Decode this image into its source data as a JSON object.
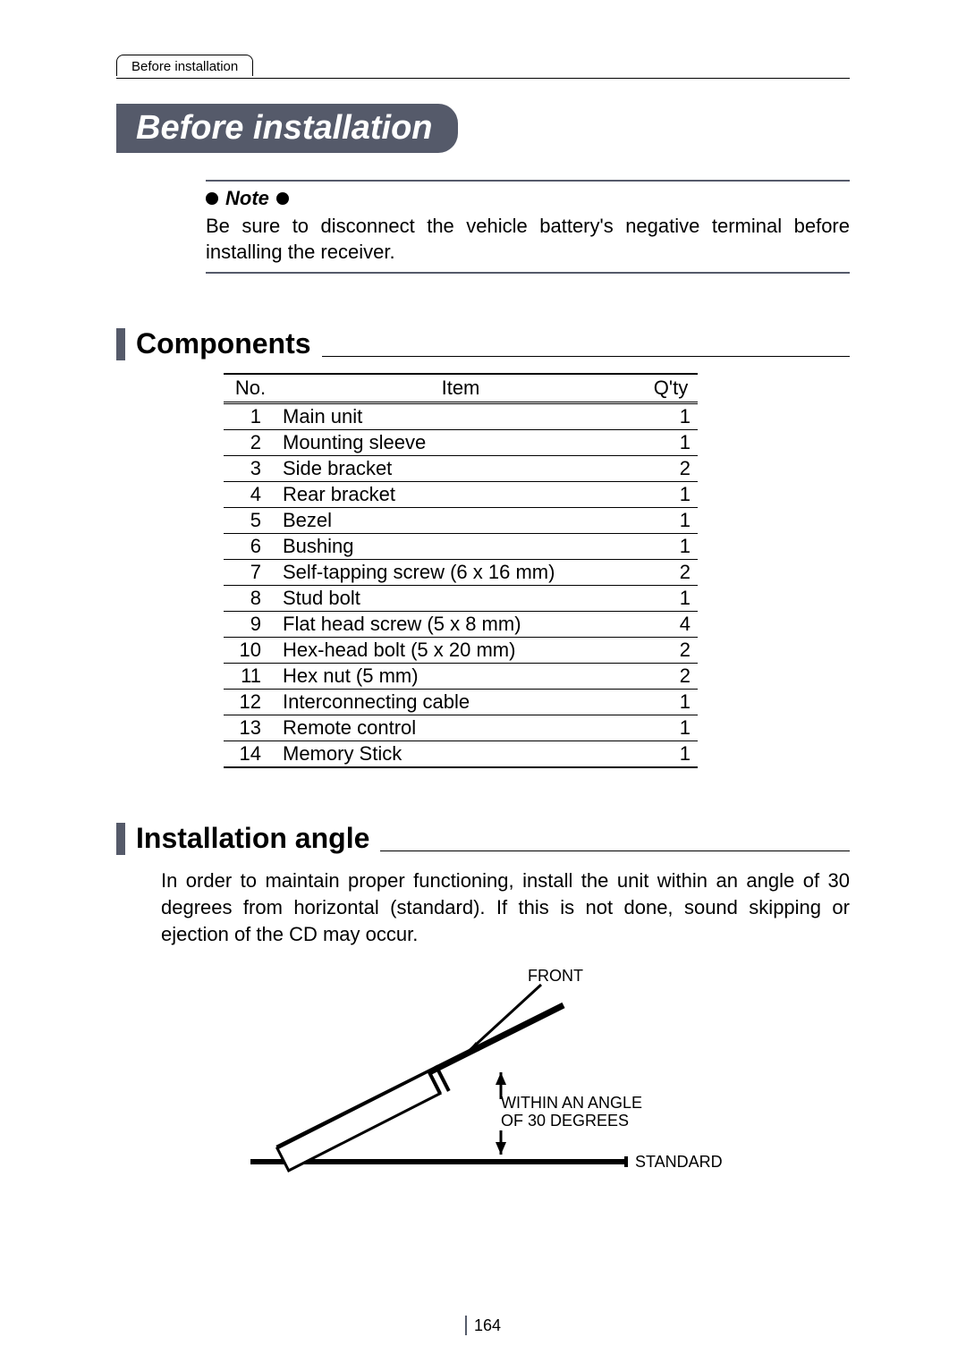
{
  "tabLabel": "Before installation",
  "mainTitle": "Before installation",
  "note": {
    "label": "Note",
    "body": "Be sure to disconnect the vehicle battery's negative terminal before installing the receiver."
  },
  "sections": {
    "components": {
      "title": "Components",
      "table": {
        "headers": {
          "no": "No.",
          "item": "Item",
          "qty": "Q'ty"
        },
        "rows": [
          {
            "no": "1",
            "item": "Main unit",
            "qty": "1"
          },
          {
            "no": "2",
            "item": "Mounting sleeve",
            "qty": "1"
          },
          {
            "no": "3",
            "item": "Side bracket",
            "qty": "2"
          },
          {
            "no": "4",
            "item": "Rear bracket",
            "qty": "1"
          },
          {
            "no": "5",
            "item": "Bezel",
            "qty": "1"
          },
          {
            "no": "6",
            "item": "Bushing",
            "qty": "1"
          },
          {
            "no": "7",
            "item": "Self-tapping screw (6 x 16 mm)",
            "qty": "2"
          },
          {
            "no": "8",
            "item": "Stud bolt",
            "qty": "1"
          },
          {
            "no": "9",
            "item": "Flat head screw (5 x 8 mm)",
            "qty": "4"
          },
          {
            "no": "10",
            "item": "Hex-head bolt (5 x 20 mm)",
            "qty": "2"
          },
          {
            "no": "11",
            "item": "Hex nut (5 mm)",
            "qty": "2"
          },
          {
            "no": "12",
            "item": "Interconnecting cable",
            "qty": "1"
          },
          {
            "no": "13",
            "item": "Remote control",
            "qty": "1"
          },
          {
            "no": "14",
            "item": "Memory Stick",
            "qty": "1"
          }
        ]
      }
    },
    "installationAngle": {
      "title": "Installation angle",
      "body": "In order to maintain proper functioning, install the unit within an angle of 30 degrees from horizontal (standard). If this is not done, sound skipping or ejection of the CD may occur.",
      "diagram": {
        "labels": {
          "front": "FRONT",
          "angle1": "WITHIN AN ANGLE",
          "angle2": "OF 30 DEGREES",
          "standard": "STANDARD"
        },
        "colors": {
          "stroke": "#000000",
          "fill": "#ffffff",
          "text": "#000000"
        },
        "fontsize": 18,
        "lineWidthThick": 6,
        "lineWidthThin": 3
      }
    }
  },
  "pageNumber": "164",
  "colors": {
    "accent": "#555a6a",
    "text": "#000000",
    "bg": "#ffffff"
  }
}
